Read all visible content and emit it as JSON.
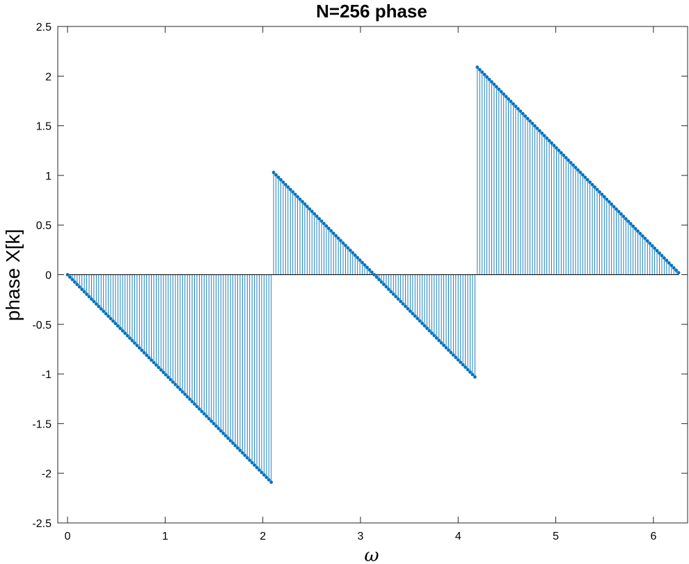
{
  "chart_data": {
    "type": "stem",
    "title": "N=256 phase",
    "xlabel": "ω",
    "ylabel": "phase X[k]",
    "xlim": [
      -0.1,
      6.35
    ],
    "ylim": [
      -2.5,
      2.5
    ],
    "x_ticks": [
      0,
      1,
      2,
      3,
      4,
      5,
      6
    ],
    "x_tick_labels": [
      "0",
      "1",
      "2",
      "3",
      "4",
      "5",
      "6"
    ],
    "y_ticks": [
      2.5,
      2,
      1.5,
      1,
      0.5,
      0,
      -0.5,
      -1,
      -1.5,
      -2,
      -2.5
    ],
    "y_tick_labels": [
      "2.5",
      "2",
      "1.5",
      "1",
      "0.5",
      "0",
      "-0.5",
      "-1",
      "-1.5",
      "-2",
      "-2.5"
    ],
    "grid": false,
    "series": [
      {
        "n_points": 256,
        "x_start": 0,
        "x_step": 0.02454,
        "segments": [
          {
            "k_range": [
              0,
              85
            ],
            "y_start": 0,
            "y_end": -2.09
          },
          {
            "k_range": [
              86,
              170
            ],
            "y_start": 1.03,
            "y_end": -1.03
          },
          {
            "k_range": [
              171,
              255
            ],
            "y_start": 2.09,
            "y_end": 0.02
          }
        ],
        "color": "#0072BD"
      }
    ]
  }
}
